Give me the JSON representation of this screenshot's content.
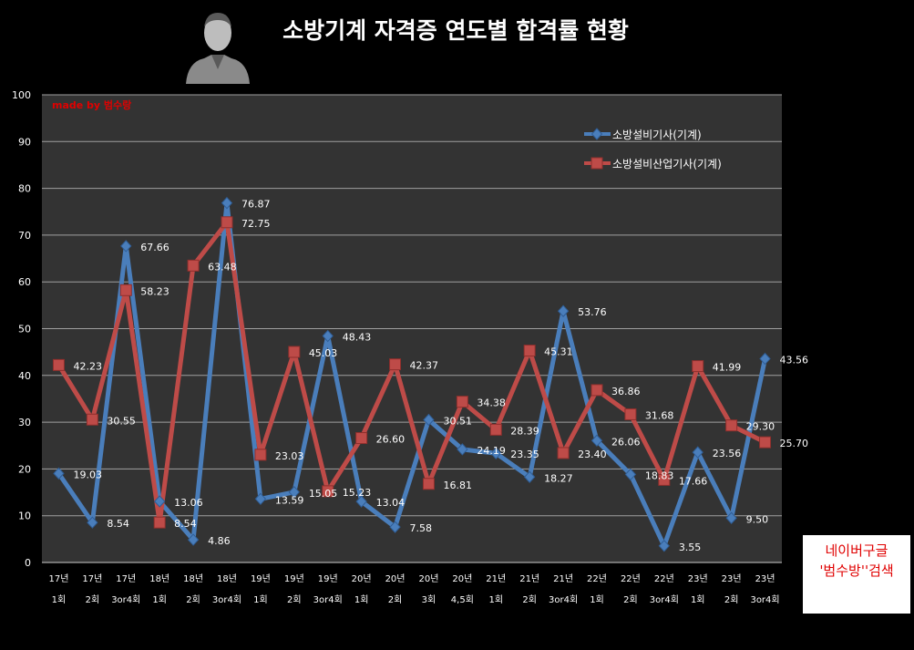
{
  "title": "소방기계 자격증 연도별 합격률 현황",
  "made_by": "made by  범수랑",
  "badge": {
    "line1": "네이버구글",
    "line2": "'범수방''검색"
  },
  "colors": {
    "series1": "#4a7ebb",
    "series2": "#be4b48",
    "background": "#000000",
    "plot_bg": "#333333",
    "grid": "#a0a0a0",
    "made_by": "#e00000"
  },
  "chart_data": {
    "type": "line",
    "ylim": [
      0,
      100
    ],
    "yticks": [
      0,
      10,
      20,
      30,
      40,
      50,
      60,
      70,
      80,
      90,
      100
    ],
    "grid": true,
    "legend": "top-right",
    "categories": [
      [
        "17년",
        "1회"
      ],
      [
        "17년",
        "2회"
      ],
      [
        "17년",
        "3or4회"
      ],
      [
        "18년",
        "1회"
      ],
      [
        "18년",
        "2회"
      ],
      [
        "18년",
        "3or4회"
      ],
      [
        "19년",
        "1회"
      ],
      [
        "19년",
        "2회"
      ],
      [
        "19년",
        "3or4회"
      ],
      [
        "20년",
        "1회"
      ],
      [
        "20년",
        "2회"
      ],
      [
        "20년",
        "3회"
      ],
      [
        "20년",
        "4,5회"
      ],
      [
        "21년",
        "1회"
      ],
      [
        "21년",
        "2회"
      ],
      [
        "21년",
        "3or4회"
      ],
      [
        "22년",
        "1회"
      ],
      [
        "22년",
        "2회"
      ],
      [
        "22년",
        "3or4회"
      ],
      [
        "23년",
        "1회"
      ],
      [
        "23년",
        "2회"
      ],
      [
        "23년",
        "3or4회"
      ]
    ],
    "series": [
      {
        "name": "소방설비기사(기계)",
        "color": "#4a7ebb",
        "marker": "diamond",
        "values": [
          19.03,
          8.54,
          67.66,
          13.06,
          4.86,
          76.87,
          13.59,
          15.05,
          48.43,
          13.04,
          7.58,
          30.51,
          24.19,
          23.35,
          18.27,
          53.76,
          26.06,
          18.83,
          3.55,
          23.56,
          9.5,
          43.56
        ],
        "labels": [
          "19.03",
          "8.54",
          "67.66",
          "13.06",
          "4.86",
          "76.87",
          "13.59",
          "15.05",
          "48.43",
          "13.04",
          "7.58",
          "30.51",
          "24.19",
          "23.35",
          "18.27",
          "53.76",
          "26.06",
          "18.83",
          "3.55",
          "23.56",
          "9.50",
          "43.56"
        ]
      },
      {
        "name": "소방설비산업기사(기계)",
        "color": "#be4b48",
        "marker": "square",
        "values": [
          42.23,
          30.55,
          58.23,
          8.54,
          63.48,
          72.75,
          23.03,
          45.03,
          15.23,
          26.6,
          42.37,
          16.81,
          34.38,
          28.39,
          45.31,
          23.4,
          36.86,
          31.68,
          17.66,
          41.99,
          29.3,
          25.7
        ],
        "labels": [
          "42.23",
          "30.55",
          "58.23",
          "8.54",
          "63.48",
          "72.75",
          "23.03",
          "45.03",
          "15.23",
          "26.60",
          "42.37",
          "16.81",
          "34.38",
          "28.39",
          "45.31",
          "23.40",
          "36.86",
          "31.68",
          "17.66",
          "41.99",
          "29.30",
          "25.70"
        ]
      }
    ]
  }
}
